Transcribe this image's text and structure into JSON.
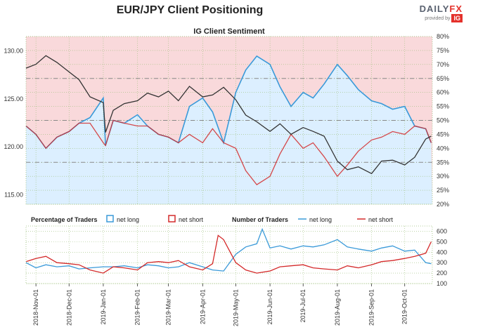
{
  "header": {
    "title": "EUR/JPY Client Positioning",
    "brand_name": "DAILY",
    "brand_fx": "FX",
    "brand_sub": "provided by",
    "brand_logo": "IG"
  },
  "colors": {
    "net_long": "#3a9ad9",
    "net_short": "#d42a2a",
    "price": "#333333",
    "long_fill": "#dcefff",
    "short_fill": "#f9d9db"
  },
  "chart_data": [
    {
      "type": "line",
      "title": "IG Client Sentiment",
      "y_left_label_ticks": [
        "115.00",
        "120.00",
        "125.00",
        "130.00"
      ],
      "y_left_range": [
        114,
        131.5
      ],
      "y_right_label_ticks": [
        "20%",
        "25%",
        "30%",
        "35%",
        "40%",
        "45%",
        "50%",
        "55%",
        "60%",
        "65%",
        "70%",
        "75%",
        "80%"
      ],
      "y_right_range": [
        20,
        80
      ],
      "x_ticks": [
        "2018-Nov-01",
        "2018-Dec-01",
        "2019-Jan-01",
        "2019-Feb-01",
        "2019-Mar-01",
        "2019-Apr-01",
        "2019-May-01",
        "2019-Jun-01",
        "2019-Jul-01",
        "2019-Aug-01",
        "2019-Sep-01",
        "2019-Oct-01"
      ],
      "reference_lines_pct": [
        35,
        50,
        65
      ],
      "series": [
        {
          "name": "EUR/JPY price",
          "x": [
            "2018-10-23",
            "2018-11-01",
            "2018-11-10",
            "2018-11-20",
            "2018-12-01",
            "2018-12-10",
            "2018-12-20",
            "2019-01-01",
            "2019-01-03",
            "2019-01-10",
            "2019-01-20",
            "2019-02-01",
            "2019-02-10",
            "2019-02-20",
            "2019-03-01",
            "2019-03-10",
            "2019-03-20",
            "2019-04-01",
            "2019-04-10",
            "2019-04-20",
            "2019-05-01",
            "2019-05-10",
            "2019-05-20",
            "2019-06-01",
            "2019-06-10",
            "2019-06-20",
            "2019-07-01",
            "2019-07-10",
            "2019-07-20",
            "2019-08-01",
            "2019-08-10",
            "2019-08-20",
            "2019-09-01",
            "2019-09-10",
            "2019-09-20",
            "2019-10-01",
            "2019-10-10",
            "2019-10-20",
            "2019-10-25"
          ],
          "values": [
            128.2,
            128.6,
            129.5,
            128.8,
            127.8,
            127.0,
            125.2,
            124.6,
            121.5,
            123.8,
            124.5,
            124.8,
            125.6,
            125.2,
            125.8,
            124.8,
            126.3,
            125.2,
            125.4,
            126.2,
            124.9,
            123.3,
            122.6,
            121.6,
            122.4,
            121.3,
            122.0,
            121.6,
            121.1,
            118.5,
            117.6,
            117.9,
            117.2,
            118.5,
            118.6,
            118.1,
            118.9,
            120.8,
            121.1
          ]
        },
        {
          "name": "Net long %",
          "x": [
            "2018-10-23",
            "2018-11-01",
            "2018-11-10",
            "2018-11-20",
            "2018-12-01",
            "2018-12-10",
            "2018-12-20",
            "2019-01-01",
            "2019-01-03",
            "2019-01-10",
            "2019-01-20",
            "2019-02-01",
            "2019-02-10",
            "2019-02-20",
            "2019-03-01",
            "2019-03-10",
            "2019-03-20",
            "2019-04-01",
            "2019-04-10",
            "2019-04-20",
            "2019-05-01",
            "2019-05-10",
            "2019-05-20",
            "2019-06-01",
            "2019-06-10",
            "2019-06-20",
            "2019-07-01",
            "2019-07-10",
            "2019-07-20",
            "2019-08-01",
            "2019-08-10",
            "2019-08-20",
            "2019-09-01",
            "2019-09-10",
            "2019-09-20",
            "2019-10-01",
            "2019-10-10",
            "2019-10-20",
            "2019-10-25"
          ],
          "values": [
            48,
            45,
            40,
            44,
            46,
            49,
            51,
            58,
            41,
            50,
            49,
            52,
            48,
            45,
            44,
            42,
            55,
            58,
            53,
            42,
            60,
            68,
            73,
            70,
            62,
            55,
            60,
            58,
            63,
            70,
            66,
            61,
            57,
            56,
            54,
            55,
            48,
            47,
            42
          ]
        }
      ]
    },
    {
      "type": "line",
      "title": "",
      "legend": {
        "pct_heading": "Percentage of Traders",
        "pct_long": "net long",
        "pct_short": "net short",
        "num_heading": "Number of Traders",
        "num_long": "net long",
        "num_short": "net short"
      },
      "y_right_label_ticks": [
        "100",
        "200",
        "300",
        "400",
        "500",
        "600"
      ],
      "y_right_range": [
        100,
        650
      ],
      "series": [
        {
          "name": "net long",
          "x": [
            "2018-10-23",
            "2018-11-01",
            "2018-11-10",
            "2018-11-20",
            "2018-12-01",
            "2018-12-10",
            "2018-12-20",
            "2019-01-01",
            "2019-01-10",
            "2019-01-20",
            "2019-02-01",
            "2019-02-10",
            "2019-02-20",
            "2019-03-01",
            "2019-03-10",
            "2019-03-20",
            "2019-04-01",
            "2019-04-10",
            "2019-04-20",
            "2019-05-01",
            "2019-05-10",
            "2019-05-20",
            "2019-05-25",
            "2019-06-01",
            "2019-06-10",
            "2019-06-20",
            "2019-07-01",
            "2019-07-10",
            "2019-07-20",
            "2019-08-01",
            "2019-08-10",
            "2019-08-20",
            "2019-09-01",
            "2019-09-10",
            "2019-09-20",
            "2019-10-01",
            "2019-10-10",
            "2019-10-20",
            "2019-10-25"
          ],
          "values": [
            300,
            250,
            280,
            260,
            270,
            240,
            250,
            260,
            260,
            270,
            250,
            280,
            270,
            250,
            260,
            300,
            260,
            230,
            220,
            380,
            450,
            480,
            620,
            440,
            460,
            430,
            460,
            450,
            470,
            520,
            450,
            430,
            410,
            440,
            460,
            410,
            420,
            300,
            290
          ]
        },
        {
          "name": "net short",
          "x": [
            "2018-10-23",
            "2018-11-01",
            "2018-11-10",
            "2018-11-20",
            "2018-12-01",
            "2018-12-10",
            "2018-12-20",
            "2019-01-01",
            "2019-01-10",
            "2019-01-20",
            "2019-02-01",
            "2019-02-10",
            "2019-02-20",
            "2019-03-01",
            "2019-03-10",
            "2019-03-20",
            "2019-04-01",
            "2019-04-10",
            "2019-04-15",
            "2019-04-20",
            "2019-05-01",
            "2019-05-10",
            "2019-05-20",
            "2019-06-01",
            "2019-06-10",
            "2019-06-20",
            "2019-07-01",
            "2019-07-10",
            "2019-07-20",
            "2019-08-01",
            "2019-08-10",
            "2019-08-20",
            "2019-09-01",
            "2019-09-10",
            "2019-09-20",
            "2019-10-01",
            "2019-10-10",
            "2019-10-20",
            "2019-10-25"
          ],
          "values": [
            310,
            340,
            360,
            300,
            290,
            280,
            230,
            200,
            260,
            250,
            230,
            300,
            310,
            300,
            320,
            260,
            230,
            290,
            560,
            520,
            300,
            230,
            200,
            220,
            260,
            270,
            280,
            250,
            240,
            230,
            270,
            250,
            280,
            310,
            320,
            340,
            360,
            390,
            500
          ]
        }
      ]
    }
  ]
}
